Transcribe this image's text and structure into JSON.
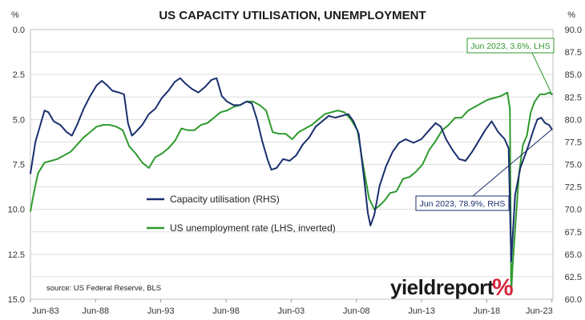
{
  "chart_data": {
    "type": "line",
    "title": "US CAPACITY UTILISATION, UNEMPLOYMENT",
    "left_axis": {
      "unit": "%",
      "min": 0,
      "max": 15,
      "inverted": true,
      "ticks": [
        "0.0",
        "2.5",
        "5.0",
        "7.5",
        "10.0",
        "12.5",
        "15.0"
      ],
      "tick_values": [
        0,
        2.5,
        5,
        7.5,
        10,
        12.5,
        15
      ]
    },
    "right_axis": {
      "unit": "%",
      "min": 60,
      "max": 90,
      "ticks": [
        "90.0",
        "87.5",
        "85.0",
        "82.5",
        "80.0",
        "77.5",
        "75.0",
        "72.5",
        "70.0",
        "67.5",
        "65.0",
        "62.5",
        "60.0"
      ],
      "tick_values": [
        90,
        87.5,
        85,
        82.5,
        80,
        77.5,
        75,
        72.5,
        70,
        67.5,
        65,
        62.5,
        60
      ]
    },
    "x_axis": {
      "min": 1983.42,
      "max": 2023.5,
      "ticks": [
        "Jun-83",
        "Jun-88",
        "Jun-93",
        "Jun-98",
        "Jun-03",
        "Jun-08",
        "Jun-13",
        "Jun-18",
        "Jun-23"
      ],
      "tick_values": [
        1983.42,
        1988.42,
        1993.42,
        1998.42,
        2003.42,
        2008.42,
        2013.42,
        2018.42,
        2023.42
      ]
    },
    "grid": "horizontal",
    "legend_position": "middle-left",
    "series": [
      {
        "name": "Capacity utilisation (RHS)",
        "axis": "right",
        "color": "#1b2f6e",
        "x": [
          1983.42,
          1983.8,
          1984.2,
          1984.5,
          1984.8,
          1985.2,
          1985.7,
          1986.2,
          1986.6,
          1987.0,
          1987.5,
          1988.0,
          1988.5,
          1988.9,
          1989.3,
          1989.7,
          1990.2,
          1990.6,
          1990.9,
          1991.2,
          1991.5,
          1992.0,
          1992.5,
          1993.0,
          1993.5,
          1994.0,
          1994.5,
          1994.9,
          1995.3,
          1995.8,
          1996.3,
          1996.8,
          1997.3,
          1997.7,
          1998.1,
          1998.5,
          1999.0,
          1999.5,
          2000.0,
          2000.4,
          2000.8,
          2001.2,
          2001.6,
          2001.9,
          2002.3,
          2002.8,
          2003.3,
          2003.8,
          2004.3,
          2004.8,
          2005.3,
          2005.8,
          2006.3,
          2006.8,
          2007.3,
          2007.8,
          2008.2,
          2008.6,
          2009.0,
          2009.3,
          2009.5,
          2009.8,
          2010.2,
          2010.7,
          2011.2,
          2011.7,
          2012.2,
          2012.8,
          2013.4,
          2014.0,
          2014.5,
          2014.9,
          2015.3,
          2015.8,
          2016.3,
          2016.8,
          2017.3,
          2017.8,
          2018.3,
          2018.8,
          2019.3,
          2019.8,
          2020.1,
          2020.3,
          2020.6,
          2021.0,
          2021.3,
          2021.6,
          2022.0,
          2022.3,
          2022.6,
          2022.9,
          2023.2,
          2023.42
        ],
        "y": [
          74.0,
          77.5,
          79.5,
          81.0,
          80.8,
          79.8,
          79.4,
          78.6,
          78.2,
          79.4,
          81.2,
          82.6,
          83.8,
          84.3,
          83.8,
          83.2,
          83.0,
          82.8,
          79.6,
          78.2,
          78.6,
          79.4,
          80.6,
          81.2,
          82.4,
          83.2,
          84.2,
          84.6,
          84.0,
          83.4,
          83.0,
          83.6,
          84.4,
          84.6,
          82.6,
          82.0,
          81.6,
          81.6,
          82.0,
          81.8,
          80.0,
          77.6,
          75.6,
          74.4,
          74.6,
          75.6,
          75.4,
          76.0,
          77.2,
          78.0,
          79.2,
          79.8,
          80.4,
          80.2,
          80.4,
          80.6,
          79.8,
          78.4,
          73.6,
          69.6,
          68.2,
          69.4,
          72.6,
          74.8,
          76.4,
          77.4,
          77.8,
          77.4,
          77.8,
          78.8,
          79.6,
          79.2,
          77.8,
          76.6,
          75.6,
          75.4,
          76.4,
          77.6,
          78.8,
          79.8,
          78.6,
          77.8,
          76.8,
          64.2,
          71.6,
          74.6,
          75.8,
          77.0,
          78.8,
          80.0,
          80.2,
          79.6,
          79.4,
          78.9
        ]
      },
      {
        "name": "US unemployment rate (LHS, inverted)",
        "axis": "left",
        "color": "#2e9a2e",
        "x": [
          1983.42,
          1983.7,
          1984.0,
          1984.5,
          1985.0,
          1985.5,
          1986.0,
          1986.5,
          1987.0,
          1987.5,
          1988.0,
          1988.5,
          1989.0,
          1989.5,
          1990.0,
          1990.5,
          1991.0,
          1991.5,
          1992.0,
          1992.5,
          1993.0,
          1993.5,
          1994.0,
          1994.5,
          1995.0,
          1995.5,
          1996.0,
          1996.5,
          1997.0,
          1997.5,
          1998.0,
          1998.5,
          1999.0,
          1999.5,
          2000.0,
          2000.5,
          2001.0,
          2001.5,
          2002.0,
          2002.5,
          2003.0,
          2003.5,
          2004.0,
          2004.5,
          2005.0,
          2005.5,
          2006.0,
          2006.5,
          2007.0,
          2007.5,
          2008.0,
          2008.5,
          2009.0,
          2009.4,
          2009.8,
          2010.2,
          2010.6,
          2011.0,
          2011.5,
          2012.0,
          2012.5,
          2013.0,
          2013.5,
          2014.0,
          2014.5,
          2015.0,
          2015.5,
          2016.0,
          2016.5,
          2017.0,
          2017.5,
          2018.0,
          2018.5,
          2019.0,
          2019.5,
          2020.0,
          2020.2,
          2020.3,
          2020.4,
          2020.6,
          2020.9,
          2021.2,
          2021.5,
          2021.8,
          2022.1,
          2022.5,
          2022.9,
          2023.2,
          2023.42
        ],
        "y": [
          10.1,
          9.0,
          8.0,
          7.4,
          7.3,
          7.2,
          7.0,
          6.8,
          6.4,
          6.0,
          5.7,
          5.4,
          5.3,
          5.3,
          5.4,
          5.6,
          6.5,
          6.9,
          7.4,
          7.7,
          7.1,
          6.9,
          6.6,
          6.2,
          5.5,
          5.6,
          5.6,
          5.3,
          5.2,
          4.9,
          4.6,
          4.5,
          4.3,
          4.2,
          4.0,
          4.0,
          4.2,
          4.5,
          5.7,
          5.8,
          5.8,
          6.1,
          5.7,
          5.5,
          5.3,
          5.0,
          4.7,
          4.6,
          4.5,
          4.6,
          5.0,
          5.6,
          7.8,
          9.4,
          10.0,
          9.8,
          9.5,
          9.1,
          9.0,
          8.3,
          8.2,
          7.9,
          7.5,
          6.7,
          6.2,
          5.6,
          5.3,
          4.9,
          4.9,
          4.5,
          4.3,
          4.1,
          3.9,
          3.8,
          3.7,
          3.5,
          4.4,
          14.7,
          13.2,
          11.1,
          8.0,
          6.4,
          5.9,
          4.6,
          4.0,
          3.6,
          3.6,
          3.5,
          3.6
        ]
      }
    ],
    "annotations": [
      {
        "text": "Jun 2023, 3.6%, LHS",
        "color": "#2e9a2e",
        "series": 1
      },
      {
        "text": "Jun 2023, 78.9%, RHS",
        "color": "#1b2f6e",
        "series": 0
      }
    ],
    "source": "source: US Federal Reserve, BLS"
  },
  "logo": {
    "main": "yieldreport",
    "symbol": "%"
  }
}
